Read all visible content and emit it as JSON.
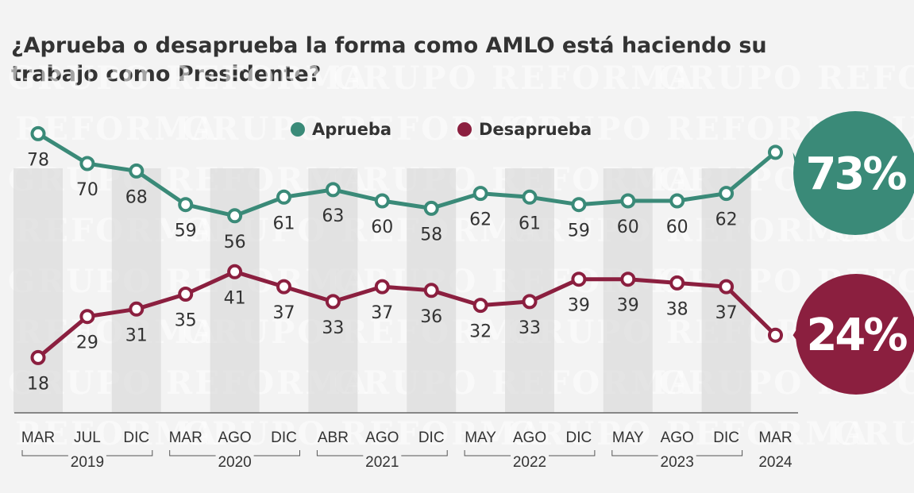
{
  "chart_data": {
    "type": "line",
    "title": "¿Aprueba o desaprueba la forma como AMLO está haciendo su trabajo como Presidente?",
    "categories": [
      "MAR",
      "JUL",
      "DIC",
      "MAR",
      "AGO",
      "DIC",
      "ABR",
      "AGO",
      "DIC",
      "MAY",
      "AGO",
      "DIC",
      "MAY",
      "AGO",
      "DIC",
      "MAR"
    ],
    "years": [
      {
        "label": "2019",
        "from": 0,
        "to": 2
      },
      {
        "label": "2020",
        "from": 3,
        "to": 5
      },
      {
        "label": "2021",
        "from": 6,
        "to": 8
      },
      {
        "label": "2022",
        "from": 9,
        "to": 11
      },
      {
        "label": "2023",
        "from": 12,
        "to": 14
      },
      {
        "label": "2024",
        "from": 15,
        "to": 15
      }
    ],
    "series": [
      {
        "name": "Aprueba",
        "color": "#3a8a78",
        "values": [
          78,
          70,
          68,
          59,
          56,
          61,
          63,
          60,
          58,
          62,
          61,
          59,
          60,
          60,
          62,
          73
        ],
        "final_label": "73%"
      },
      {
        "name": "Desaprueba",
        "color": "#8b1f3f",
        "values": [
          18,
          29,
          31,
          35,
          41,
          37,
          33,
          37,
          36,
          32,
          33,
          39,
          39,
          38,
          37,
          24
        ],
        "final_label": "24%"
      }
    ],
    "xlabel": "",
    "ylabel": "",
    "ylim": [
      0,
      100
    ],
    "legend": "top-center",
    "watermark": "GRUPO REFORMA"
  }
}
